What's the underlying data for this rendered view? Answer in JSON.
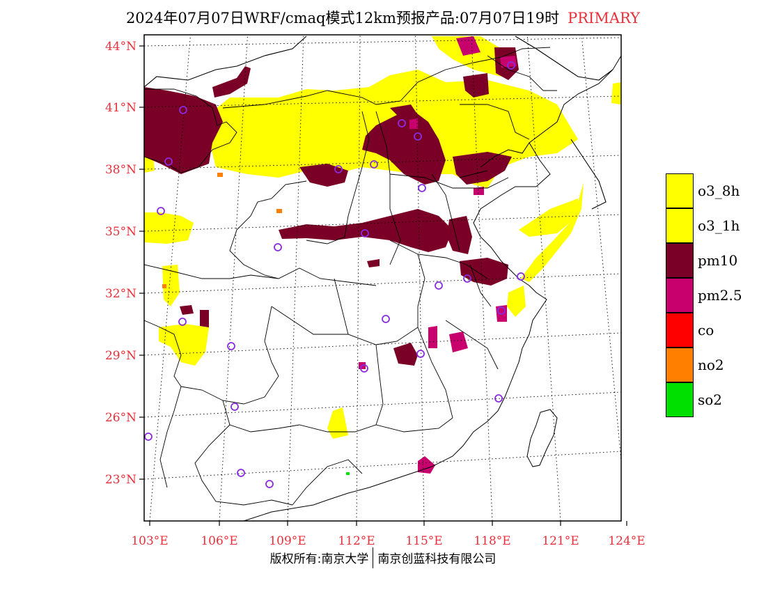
{
  "title": {
    "main": "2024年07月07日WRF/cmaq模式12km预报产品:07月07日19时",
    "primary": "PRIMARY"
  },
  "colors": {
    "label": "#e8303a",
    "o3_8h": "#ffff00",
    "o3_1h": "#ffff00",
    "pm10": "#7a0028",
    "pm25": "#c8006e",
    "co": "#ff0000",
    "no2": "#ff8000",
    "so2": "#00e000",
    "station_marker": "#8a2be2"
  },
  "axes": {
    "lat_labels": [
      "44°N",
      "41°N",
      "38°N",
      "35°N",
      "32°N",
      "29°N",
      "26°N",
      "23°N"
    ],
    "lon_labels": [
      "103°E",
      "106°E",
      "109°E",
      "112°E",
      "115°E",
      "118°E",
      "121°E",
      "124°E"
    ]
  },
  "legend": {
    "items": [
      {
        "label": "o3_8h",
        "color": "#ffff00"
      },
      {
        "label": "o3_1h",
        "color": "#ffff00"
      },
      {
        "label": "pm10",
        "color": "#7a0028"
      },
      {
        "label": "pm2.5",
        "color": "#c8006e"
      },
      {
        "label": "co",
        "color": "#ff0000"
      },
      {
        "label": "no2",
        "color": "#ff8000"
      },
      {
        "label": "so2",
        "color": "#00e000"
      }
    ]
  },
  "footer": {
    "left": "版权所有:南京大学",
    "right": "南京创蓝科技有限公司"
  }
}
